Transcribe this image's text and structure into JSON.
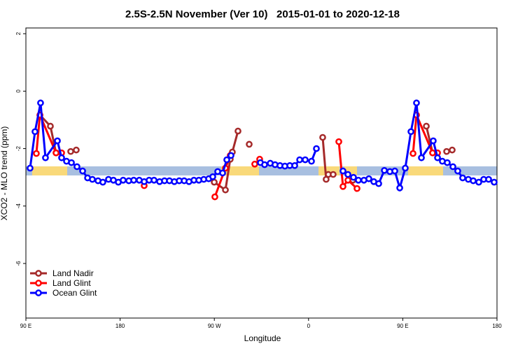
{
  "chart_data": {
    "type": "line",
    "title": "2.5S-2.5N November (Ver 10)   2015-01-01 to 2020-12-18",
    "x_label": "Longitude",
    "y_label": "XCO2 - MLO trend (ppm)",
    "xlim": [
      90,
      540
    ],
    "ylim": [
      -7.9,
      2.2
    ],
    "xticks": [
      {
        "value": 90,
        "label": "90 E"
      },
      {
        "value": 180,
        "label": "180"
      },
      {
        "value": 270,
        "label": "90 W"
      },
      {
        "value": 360,
        "label": "0"
      },
      {
        "value": 450,
        "label": "90 E"
      },
      {
        "value": 540,
        "label": "180"
      }
    ],
    "yticks": [
      2,
      0,
      -2,
      -4,
      -6
    ],
    "legend": "bottom-left",
    "series": [
      {
        "name": "Land Nadir",
        "color": "#a52a2a",
        "x": [
          103.4,
          113.4,
          118.8,
          null,
          132.8,
          138.1,
          null,
          269.9,
          280.6,
          285.2,
          287.2,
          292.6,
          null,
          303.3,
          null,
          373.5,
          376.8,
          378.9,
          383.5,
          null,
          402.3,
          null,
          472.5,
          478.5,
          null,
          491.9,
          497.2
        ],
        "values": [
          -0.83,
          -1.22,
          -2.15,
          null,
          -2.1,
          -2.05,
          null,
          -3.17,
          -3.44,
          -2.37,
          -2.12,
          -1.39,
          null,
          -1.85,
          null,
          -1.61,
          -3.07,
          -2.9,
          -2.9,
          null,
          -3.1,
          null,
          -1.22,
          -2.15,
          null,
          -2.1,
          -2.05
        ]
      },
      {
        "name": "Land Glint",
        "color": "#ff0000",
        "x": [
          100.0,
          103.4,
          118.8,
          124.1,
          null,
          203.0,
          null,
          270.5,
          280.6,
          285.2,
          null,
          308.6,
          313.3,
          null,
          388.9,
          392.9,
          397.6,
          406.3,
          null,
          459.8,
          463.1,
          478.5,
          483.2
        ],
        "values": [
          -2.17,
          -0.83,
          -2.15,
          -2.15,
          null,
          -3.29,
          null,
          -3.68,
          -2.68,
          -2.24,
          null,
          -2.54,
          -2.37,
          null,
          -1.76,
          -3.32,
          -3.1,
          -3.39,
          null,
          -2.17,
          -0.83,
          -2.15,
          -2.15
        ]
      },
      {
        "name": "Ocean Glint",
        "color": "#0000ff",
        "x": [
          94.0,
          98.7,
          104.0,
          108.7,
          120.1,
          124.1,
          128.8,
          133.5,
          138.8,
          144.2,
          148.9,
          153.5,
          158.9,
          163.5,
          168.9,
          173.6,
          178.3,
          182.9,
          188.3,
          193.0,
          198.3,
          203.0,
          207.7,
          212.4,
          217.7,
          222.4,
          227.1,
          231.8,
          236.5,
          241.2,
          245.8,
          250.5,
          255.2,
          259.9,
          264.6,
          268.5,
          273.2,
          277.9,
          281.9,
          285.9,
          null,
          314.0,
          318.0,
          323.4,
          328.0,
          332.7,
          337.4,
          342.1,
          346.8,
          351.5,
          356.8,
          362.8,
          367.5,
          null,
          392.9,
          397.6,
          402.9,
          407.6,
          412.9,
          417.6,
          422.3,
          427.0,
          432.4,
          437.7,
          442.4,
          447.1,
          452.4,
          457.8,
          463.1,
          467.8,
          479.1,
          483.2,
          487.8,
          492.5,
          497.9,
          502.5,
          507.2,
          512.6,
          517.3,
          522.6,
          527.3,
          532.0,
          537.3
        ],
        "values": [
          -2.68,
          -1.41,
          -0.41,
          -2.32,
          -1.73,
          -2.32,
          -2.44,
          -2.49,
          -2.63,
          -2.78,
          -3.02,
          -3.07,
          -3.12,
          -3.17,
          -3.07,
          -3.1,
          -3.17,
          -3.1,
          -3.12,
          -3.1,
          -3.1,
          -3.15,
          -3.1,
          -3.1,
          -3.15,
          -3.12,
          -3.12,
          -3.15,
          -3.12,
          -3.12,
          -3.15,
          -3.1,
          -3.1,
          -3.07,
          -3.05,
          -2.98,
          -2.8,
          -2.85,
          -2.39,
          -2.24,
          null,
          -2.49,
          -2.56,
          -2.51,
          -2.56,
          -2.59,
          -2.61,
          -2.59,
          -2.59,
          -2.39,
          -2.39,
          -2.44,
          -2.0,
          null,
          -2.78,
          -2.9,
          -3.0,
          -3.1,
          -3.1,
          -3.05,
          -3.15,
          -3.22,
          -2.76,
          -2.8,
          -2.78,
          -3.37,
          -2.68,
          -1.41,
          -0.41,
          -2.32,
          -1.73,
          -2.32,
          -2.44,
          -2.49,
          -2.63,
          -2.78,
          -3.02,
          -3.07,
          -3.12,
          -3.17,
          -3.07,
          -3.07,
          -3.17
        ]
      }
    ]
  }
}
